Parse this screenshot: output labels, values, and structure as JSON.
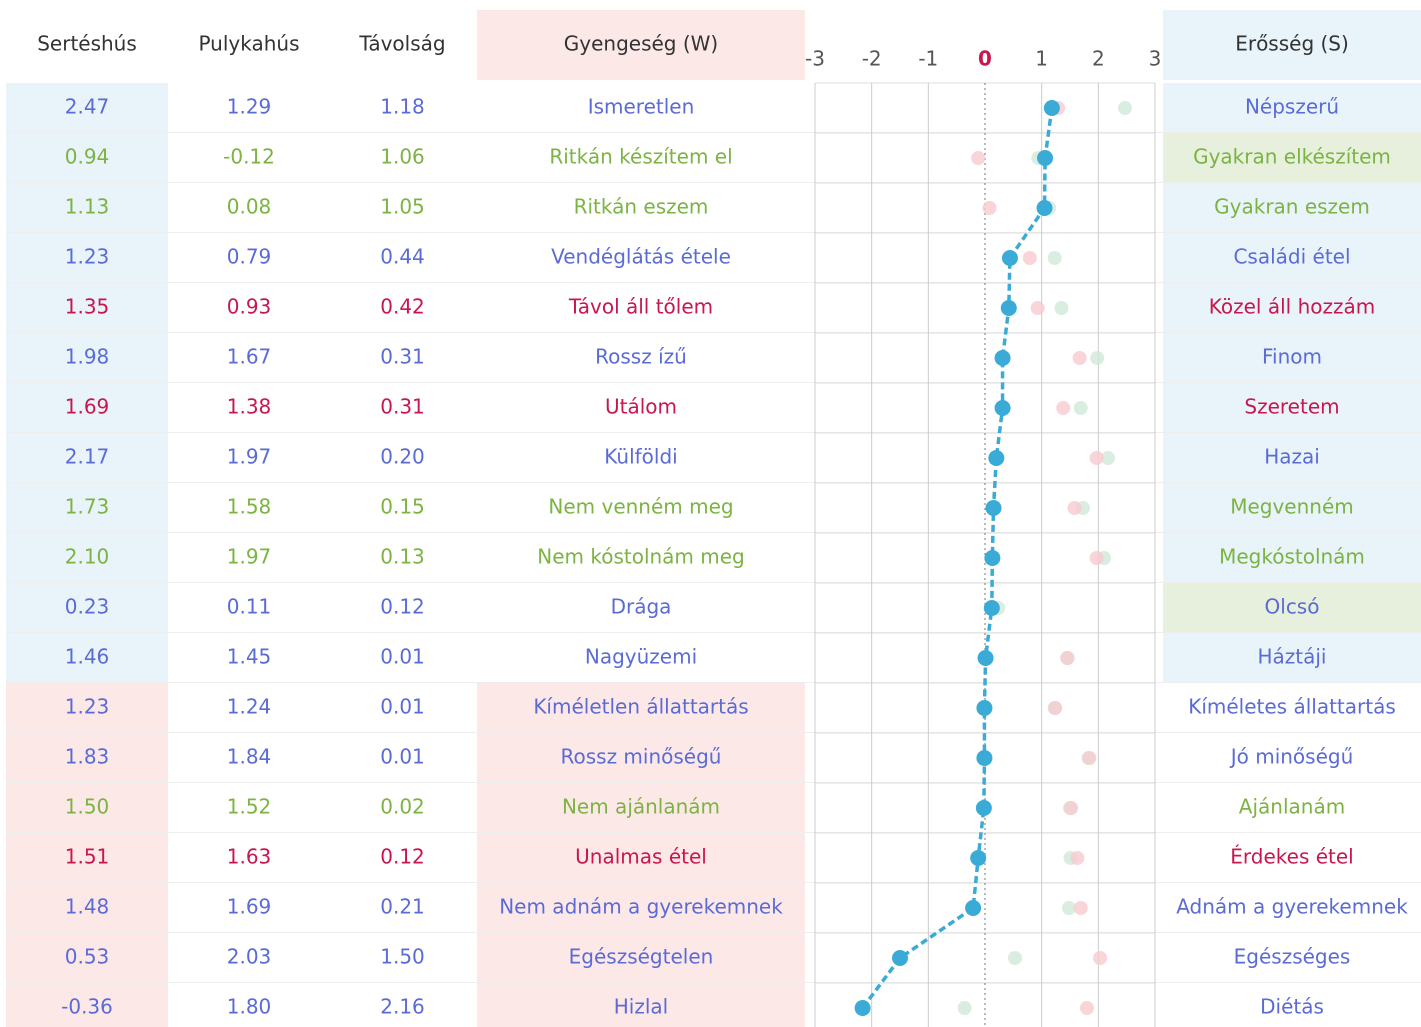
{
  "table": {
    "headers": [
      "Sertéshús",
      "Pulykahús",
      "Távolság",
      "Gyengeség (W)",
      "Erősség (S)"
    ],
    "rows": [
      [
        "2.47",
        "1.29",
        "1.18",
        "Ismeretlen",
        "Népszerű"
      ],
      [
        "0.94",
        "-0.12",
        "1.06",
        "Ritkán készítem el",
        "Gyakran elkészítem"
      ],
      [
        "1.13",
        "0.08",
        "1.05",
        "Ritkán eszem",
        "Gyakran eszem"
      ],
      [
        "1.23",
        "0.79",
        "0.44",
        "Vendéglátás étele",
        "Családi étel"
      ],
      [
        "1.35",
        "0.93",
        "0.42",
        "Távol áll tőlem",
        "Közel áll hozzám"
      ],
      [
        "1.98",
        "1.67",
        "0.31",
        "Rossz ízű",
        "Finom"
      ],
      [
        "1.69",
        "1.38",
        "0.31",
        "Utálom",
        "Szeretem"
      ],
      [
        "2.17",
        "1.97",
        "0.20",
        "Külföldi",
        "Hazai"
      ],
      [
        "1.73",
        "1.58",
        "0.15",
        "Nem venném meg",
        "Megvenném"
      ],
      [
        "2.10",
        "1.97",
        "0.13",
        "Nem kóstolnám meg",
        "Megkóstolnám"
      ],
      [
        "0.23",
        "0.11",
        "0.12",
        "Drága",
        "Olcsó"
      ],
      [
        "1.46",
        "1.45",
        "0.01",
        "Nagyüzemi",
        "Háztáji"
      ],
      [
        "1.23",
        "1.24",
        "0.01",
        "Kíméletlen állattartás",
        "Kíméletes állattartás"
      ],
      [
        "1.83",
        "1.84",
        "0.01",
        "Rossz minőségű",
        "Jó minőségű"
      ],
      [
        "1.50",
        "1.52",
        "0.02",
        "Nem ajánlanám",
        "Ajánlanám"
      ],
      [
        "1.51",
        "1.63",
        "0.12",
        "Unalmas étel",
        "Érdekes étel"
      ],
      [
        "1.48",
        "1.69",
        "0.21",
        "Nem adnám a gyerekemnek",
        "Adnám a gyerekemnek"
      ],
      [
        "0.53",
        "2.03",
        "1.50",
        "Egészségtelen",
        "Egészséges"
      ],
      [
        "-0.36",
        "1.80",
        "2.16",
        "Hizlal",
        "Diétás"
      ]
    ],
    "row_colors": [
      "#5b6bd6",
      "#7cb342",
      "#7cb342",
      "#5b6bd6",
      "#c8174f",
      "#5b6bd6",
      "#c8174f",
      "#5b6bd6",
      "#7cb342",
      "#7cb342",
      "#5b6bd6",
      "#5b6bd6",
      "#5b6bd6",
      "#5b6bd6",
      "#7cb342",
      "#c8174f",
      "#5b6bd6",
      "#5b6bd6",
      "#5b6bd6"
    ],
    "first_bg": [
      "#e8f3fa",
      "#e8f3fa",
      "#e8f3fa",
      "#e8f3fa",
      "#e8f3fa",
      "#e8f3fa",
      "#e8f3fa",
      "#e8f3fa",
      "#e8f3fa",
      "#e8f3fa",
      "#e8f3fa",
      "#e8f3fa",
      "#fde8e8",
      "#fde8e8",
      "#fde8e8",
      "#fde8e8",
      "#fde8e8",
      "#fde8e8",
      "#fde8e8"
    ],
    "w_bg": [
      "#ffffff",
      "#ffffff",
      "#ffffff",
      "#ffffff",
      "#ffffff",
      "#ffffff",
      "#ffffff",
      "#ffffff",
      "#ffffff",
      "#ffffff",
      "#ffffff",
      "#ffffff",
      "#fde8e8",
      "#fde8e8",
      "#fde8e8",
      "#fde8e8",
      "#fde8e8",
      "#fde8e8",
      "#fde8e8"
    ],
    "s_bg": [
      "#e8f3fa",
      "#e6f0dc",
      "#e8f3fa",
      "#e8f3fa",
      "#e8f3fa",
      "#e8f3fa",
      "#e8f3fa",
      "#e8f3fa",
      "#e8f3fa",
      "#e8f3fa",
      "#e6f0dc",
      "#e8f3fa",
      "#ffffff",
      "#ffffff",
      "#ffffff",
      "#ffffff",
      "#ffffff",
      "#ffffff",
      "#ffffff"
    ]
  },
  "profile": {
    "xlim": [
      -3,
      3
    ],
    "xticks": [
      -3,
      -2,
      -1,
      0,
      1,
      2,
      3
    ],
    "zero_color": "#c8174f",
    "values": [
      1.18,
      1.06,
      1.05,
      0.44,
      0.42,
      0.31,
      0.31,
      0.2,
      0.15,
      0.13,
      0.12,
      0.01,
      -0.01,
      -0.01,
      -0.02,
      -0.12,
      -0.21,
      -1.5,
      -2.16
    ],
    "color": "#3aaad6",
    "pork_color": "#cfe8d8",
    "turkey_color": "#f7c9cf"
  }
}
